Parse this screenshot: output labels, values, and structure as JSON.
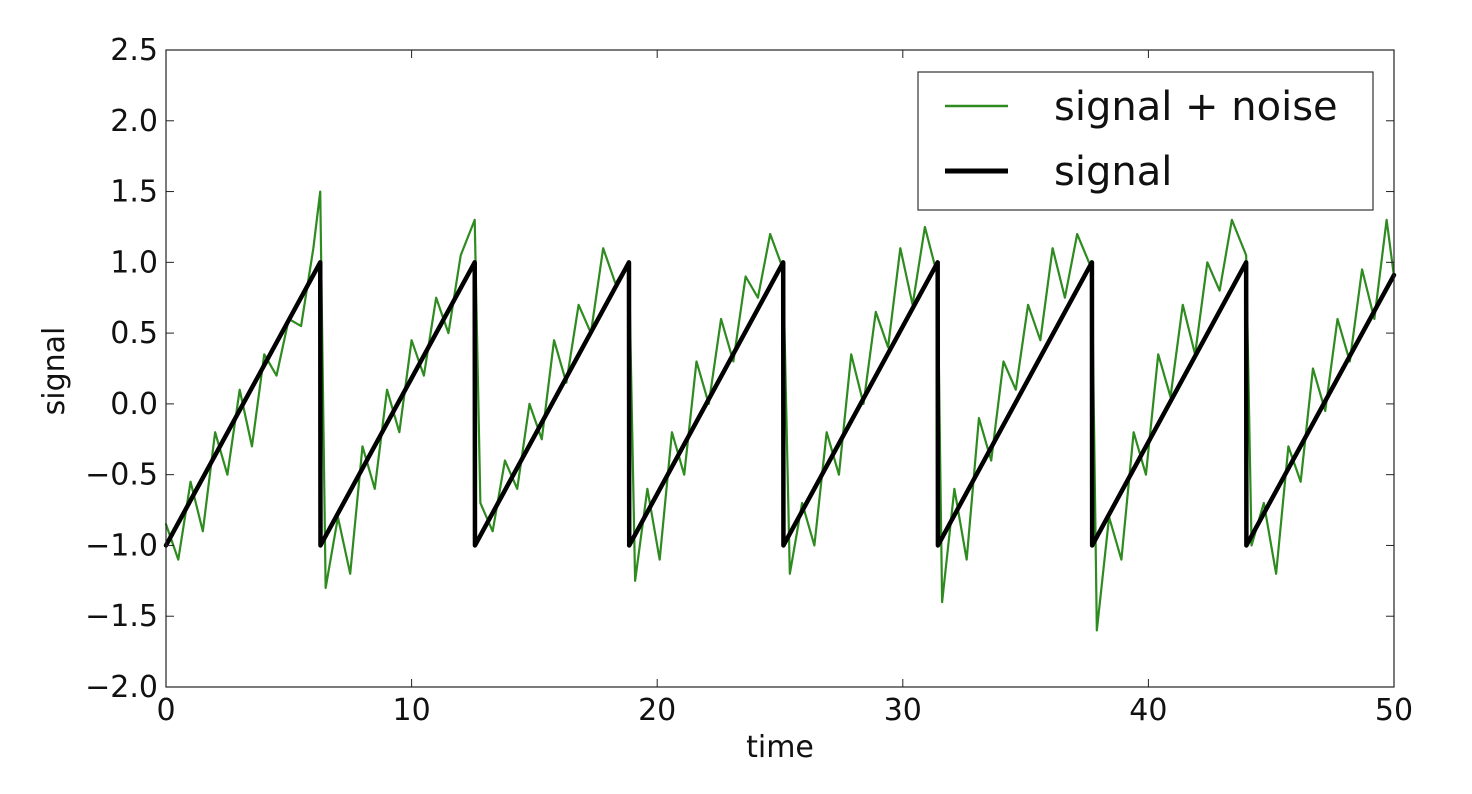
{
  "chart_data": {
    "type": "line",
    "xlabel": "time",
    "ylabel": "signal",
    "xlim": [
      0,
      50
    ],
    "ylim": [
      -2.0,
      2.5
    ],
    "x_ticks": [
      0,
      10,
      20,
      30,
      40,
      50
    ],
    "y_ticks": [
      2.5,
      2.0,
      1.5,
      1.0,
      0.5,
      0.0,
      -0.5,
      -1.0,
      -1.5,
      -2.0
    ],
    "x_tick_labels": [
      "0",
      "10",
      "20",
      "30",
      "40",
      "50"
    ],
    "y_tick_labels": [
      "2.5",
      "2.0",
      "1.5",
      "1.0",
      "0.5",
      "0.0",
      "−0.5",
      "−1.0",
      "−1.5",
      "−2.0"
    ],
    "grid": false,
    "legend": {
      "position": "top-right",
      "entries": [
        "signal + noise",
        "signal"
      ]
    },
    "series": [
      {
        "name": "signal + noise",
        "color": "#2e8b1f",
        "style": "thin-line",
        "description_kind": "noisy sawtooth",
        "x": [
          0,
          0.5,
          1,
          1.5,
          2,
          2.5,
          3,
          3.5,
          4,
          4.5,
          5,
          5.5,
          6,
          6.28,
          6.5,
          7,
          7.5,
          8,
          8.5,
          9,
          9.5,
          10,
          10.5,
          11,
          11.5,
          12,
          12.57,
          12.8,
          13.3,
          13.8,
          14.3,
          14.8,
          15.3,
          15.8,
          16.3,
          16.8,
          17.3,
          17.8,
          18.3,
          18.85,
          19.1,
          19.6,
          20.1,
          20.6,
          21.1,
          21.6,
          22.1,
          22.6,
          23.1,
          23.6,
          24.1,
          24.6,
          25.13,
          25.4,
          25.9,
          26.4,
          26.9,
          27.4,
          27.9,
          28.4,
          28.9,
          29.4,
          29.9,
          30.4,
          30.9,
          31.42,
          31.6,
          32.1,
          32.6,
          33.1,
          33.6,
          34.1,
          34.6,
          35.1,
          35.6,
          36.1,
          36.6,
          37.1,
          37.7,
          37.9,
          38.4,
          38.9,
          39.4,
          39.9,
          40.4,
          40.9,
          41.4,
          41.9,
          42.4,
          42.9,
          43.4,
          43.98,
          44.2,
          44.7,
          45.2,
          45.7,
          46.2,
          46.7,
          47.2,
          47.7,
          48.2,
          48.7,
          49.2,
          49.7,
          50
        ],
        "y": [
          -0.85,
          -1.1,
          -0.55,
          -0.9,
          -0.2,
          -0.5,
          0.1,
          -0.3,
          0.35,
          0.2,
          0.6,
          0.55,
          1.1,
          1.5,
          -1.3,
          -0.8,
          -1.2,
          -0.3,
          -0.6,
          0.1,
          -0.2,
          0.45,
          0.2,
          0.75,
          0.5,
          1.05,
          1.3,
          -0.7,
          -0.9,
          -0.4,
          -0.6,
          0.0,
          -0.25,
          0.45,
          0.15,
          0.7,
          0.5,
          1.1,
          0.85,
          1.0,
          -1.25,
          -0.6,
          -1.1,
          -0.2,
          -0.5,
          0.3,
          0.0,
          0.6,
          0.3,
          0.9,
          0.75,
          1.2,
          0.95,
          -1.2,
          -0.7,
          -1.0,
          -0.2,
          -0.5,
          0.35,
          0.0,
          0.65,
          0.4,
          1.1,
          0.7,
          1.25,
          0.9,
          -1.4,
          -0.6,
          -1.1,
          -0.1,
          -0.4,
          0.3,
          0.1,
          0.7,
          0.45,
          1.1,
          0.75,
          1.2,
          0.95,
          -1.6,
          -0.8,
          -1.1,
          -0.2,
          -0.5,
          0.35,
          0.05,
          0.7,
          0.35,
          1.0,
          0.8,
          1.3,
          1.05,
          -1.0,
          -0.7,
          -1.2,
          -0.3,
          -0.55,
          0.25,
          -0.05,
          0.6,
          0.3,
          0.95,
          0.6,
          1.3,
          0.9
        ]
      },
      {
        "name": "signal",
        "color": "#000000",
        "style": "thick-line",
        "x": [
          0,
          6.28,
          6.29,
          12.57,
          12.58,
          18.85,
          18.86,
          25.13,
          25.14,
          31.42,
          31.43,
          37.7,
          37.71,
          43.98,
          43.99,
          50
        ],
        "y": [
          -1.0,
          1.0,
          -1.0,
          1.0,
          -1.0,
          1.0,
          -1.0,
          1.0,
          -1.0,
          1.0,
          -1.0,
          1.0,
          -1.0,
          1.0,
          -1.0,
          0.91
        ]
      }
    ]
  }
}
